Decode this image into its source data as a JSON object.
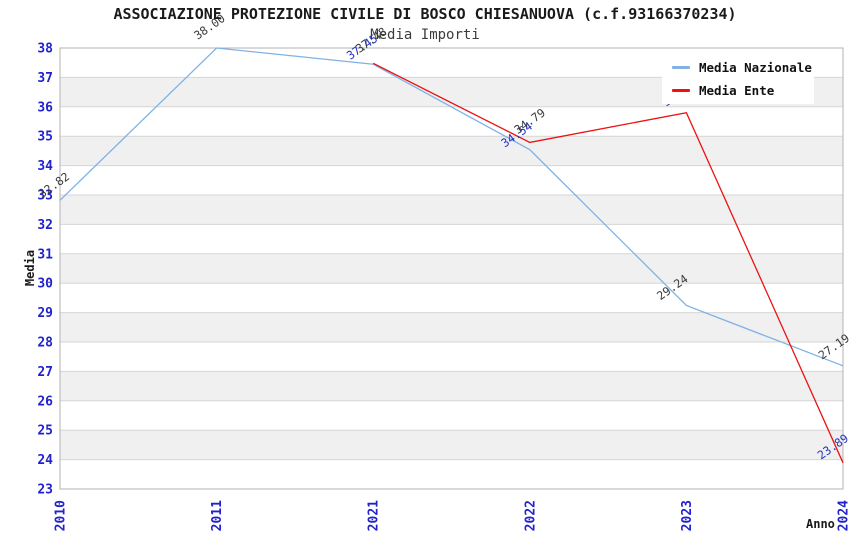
{
  "chart_data": {
    "type": "line",
    "title": "ASSOCIAZIONE PROTEZIONE CIVILE DI BOSCO CHIESANUOVA (c.f.93166370234)",
    "subtitle": "Media Importi",
    "xlabel": "Anno",
    "ylabel": "Media",
    "categories": [
      "2010",
      "2011",
      "2021",
      "2022",
      "2023",
      "2024"
    ],
    "ylim": [
      23,
      38
    ],
    "ytick_step": 1,
    "grid": "horizontal-bands-alternating",
    "legend_position": "top-right",
    "series": [
      {
        "name": "Media Nazionale",
        "color": "#7fb2e5",
        "values": [
          32.82,
          38.0,
          37.45,
          34.54,
          29.24,
          27.19
        ]
      },
      {
        "name": "Media Ente",
        "color": "#ec1212",
        "values": [
          null,
          null,
          37.48,
          34.79,
          35.8,
          23.89
        ]
      }
    ],
    "point_labels": [
      {
        "series": 0,
        "x": "2010",
        "text": "32.82",
        "color": "#3a3a3a"
      },
      {
        "series": 0,
        "x": "2011",
        "text": "38.00",
        "color": "#3a3a3a"
      },
      {
        "series": 0,
        "x": "2021",
        "text": "37.45",
        "color": "#2433c0"
      },
      {
        "series": 1,
        "x": "2021",
        "text": "37.48",
        "color": "#3a3a3a"
      },
      {
        "series": 0,
        "x": "2022",
        "text": "34.54",
        "color": "#2433c0"
      },
      {
        "series": 1,
        "x": "2022",
        "text": "34.79",
        "color": "#3a3a3a"
      },
      {
        "series": 0,
        "x": "2023",
        "text": "29.24",
        "color": "#3a3a3a"
      },
      {
        "series": 1,
        "x": "2023",
        "text": "35.80",
        "color": "#2433c0"
      },
      {
        "series": 0,
        "x": "2024",
        "text": "27.19",
        "color": "#3a3a3a"
      },
      {
        "series": 1,
        "x": "2024",
        "text": "23.89",
        "color": "#2433c0"
      }
    ],
    "colors": {
      "tick_label": "#2222cc",
      "band_light": "#ffffff",
      "band_dark": "#f0f0f0",
      "gridline": "#d6d6d6",
      "plot_border": "#b3b3b3",
      "title": "#1a1a1a",
      "subtitle": "#3c3c3c",
      "background": "#ffffff"
    }
  }
}
